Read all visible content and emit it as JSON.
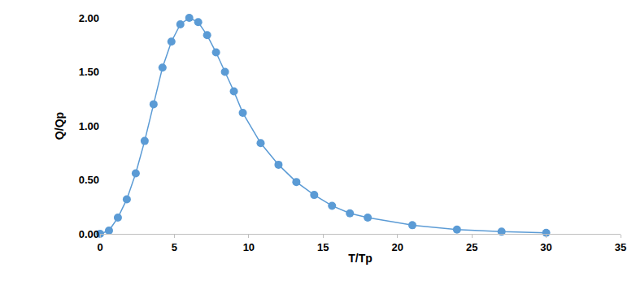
{
  "chart_data": {
    "type": "line",
    "x_label": "T/Tp",
    "y_label": "Q/Qp",
    "x": [
      0,
      0.6,
      1.2,
      1.8,
      2.4,
      3.0,
      3.6,
      4.2,
      4.8,
      5.4,
      6.0,
      6.6,
      7.2,
      7.8,
      8.4,
      9.0,
      9.6,
      10.8,
      12.0,
      13.2,
      14.4,
      15.6,
      16.8,
      18.0,
      21.0,
      24.0,
      27.0,
      30.0
    ],
    "values": [
      0,
      0.03,
      0.15,
      0.32,
      0.56,
      0.86,
      1.2,
      1.54,
      1.78,
      1.94,
      2.0,
      1.96,
      1.84,
      1.68,
      1.5,
      1.32,
      1.12,
      0.84,
      0.64,
      0.48,
      0.36,
      0.26,
      0.19,
      0.15,
      0.08,
      0.04,
      0.02,
      0.01
    ],
    "color": "#5b9bd5",
    "marker": "circle",
    "line_style": "solid",
    "xlim": [
      0,
      35
    ],
    "xticks": [
      0,
      5,
      10,
      15,
      20,
      25,
      30,
      35
    ],
    "ylim": [
      0,
      2
    ],
    "yticks": [
      {
        "value": 0,
        "label": "0.00"
      },
      {
        "value": 0.5,
        "label": "0.50"
      },
      {
        "value": 1,
        "label": "1.00"
      },
      {
        "value": 1.5,
        "label": "1.50"
      },
      {
        "value": 2,
        "label": "2.00"
      }
    ],
    "grid": false
  }
}
